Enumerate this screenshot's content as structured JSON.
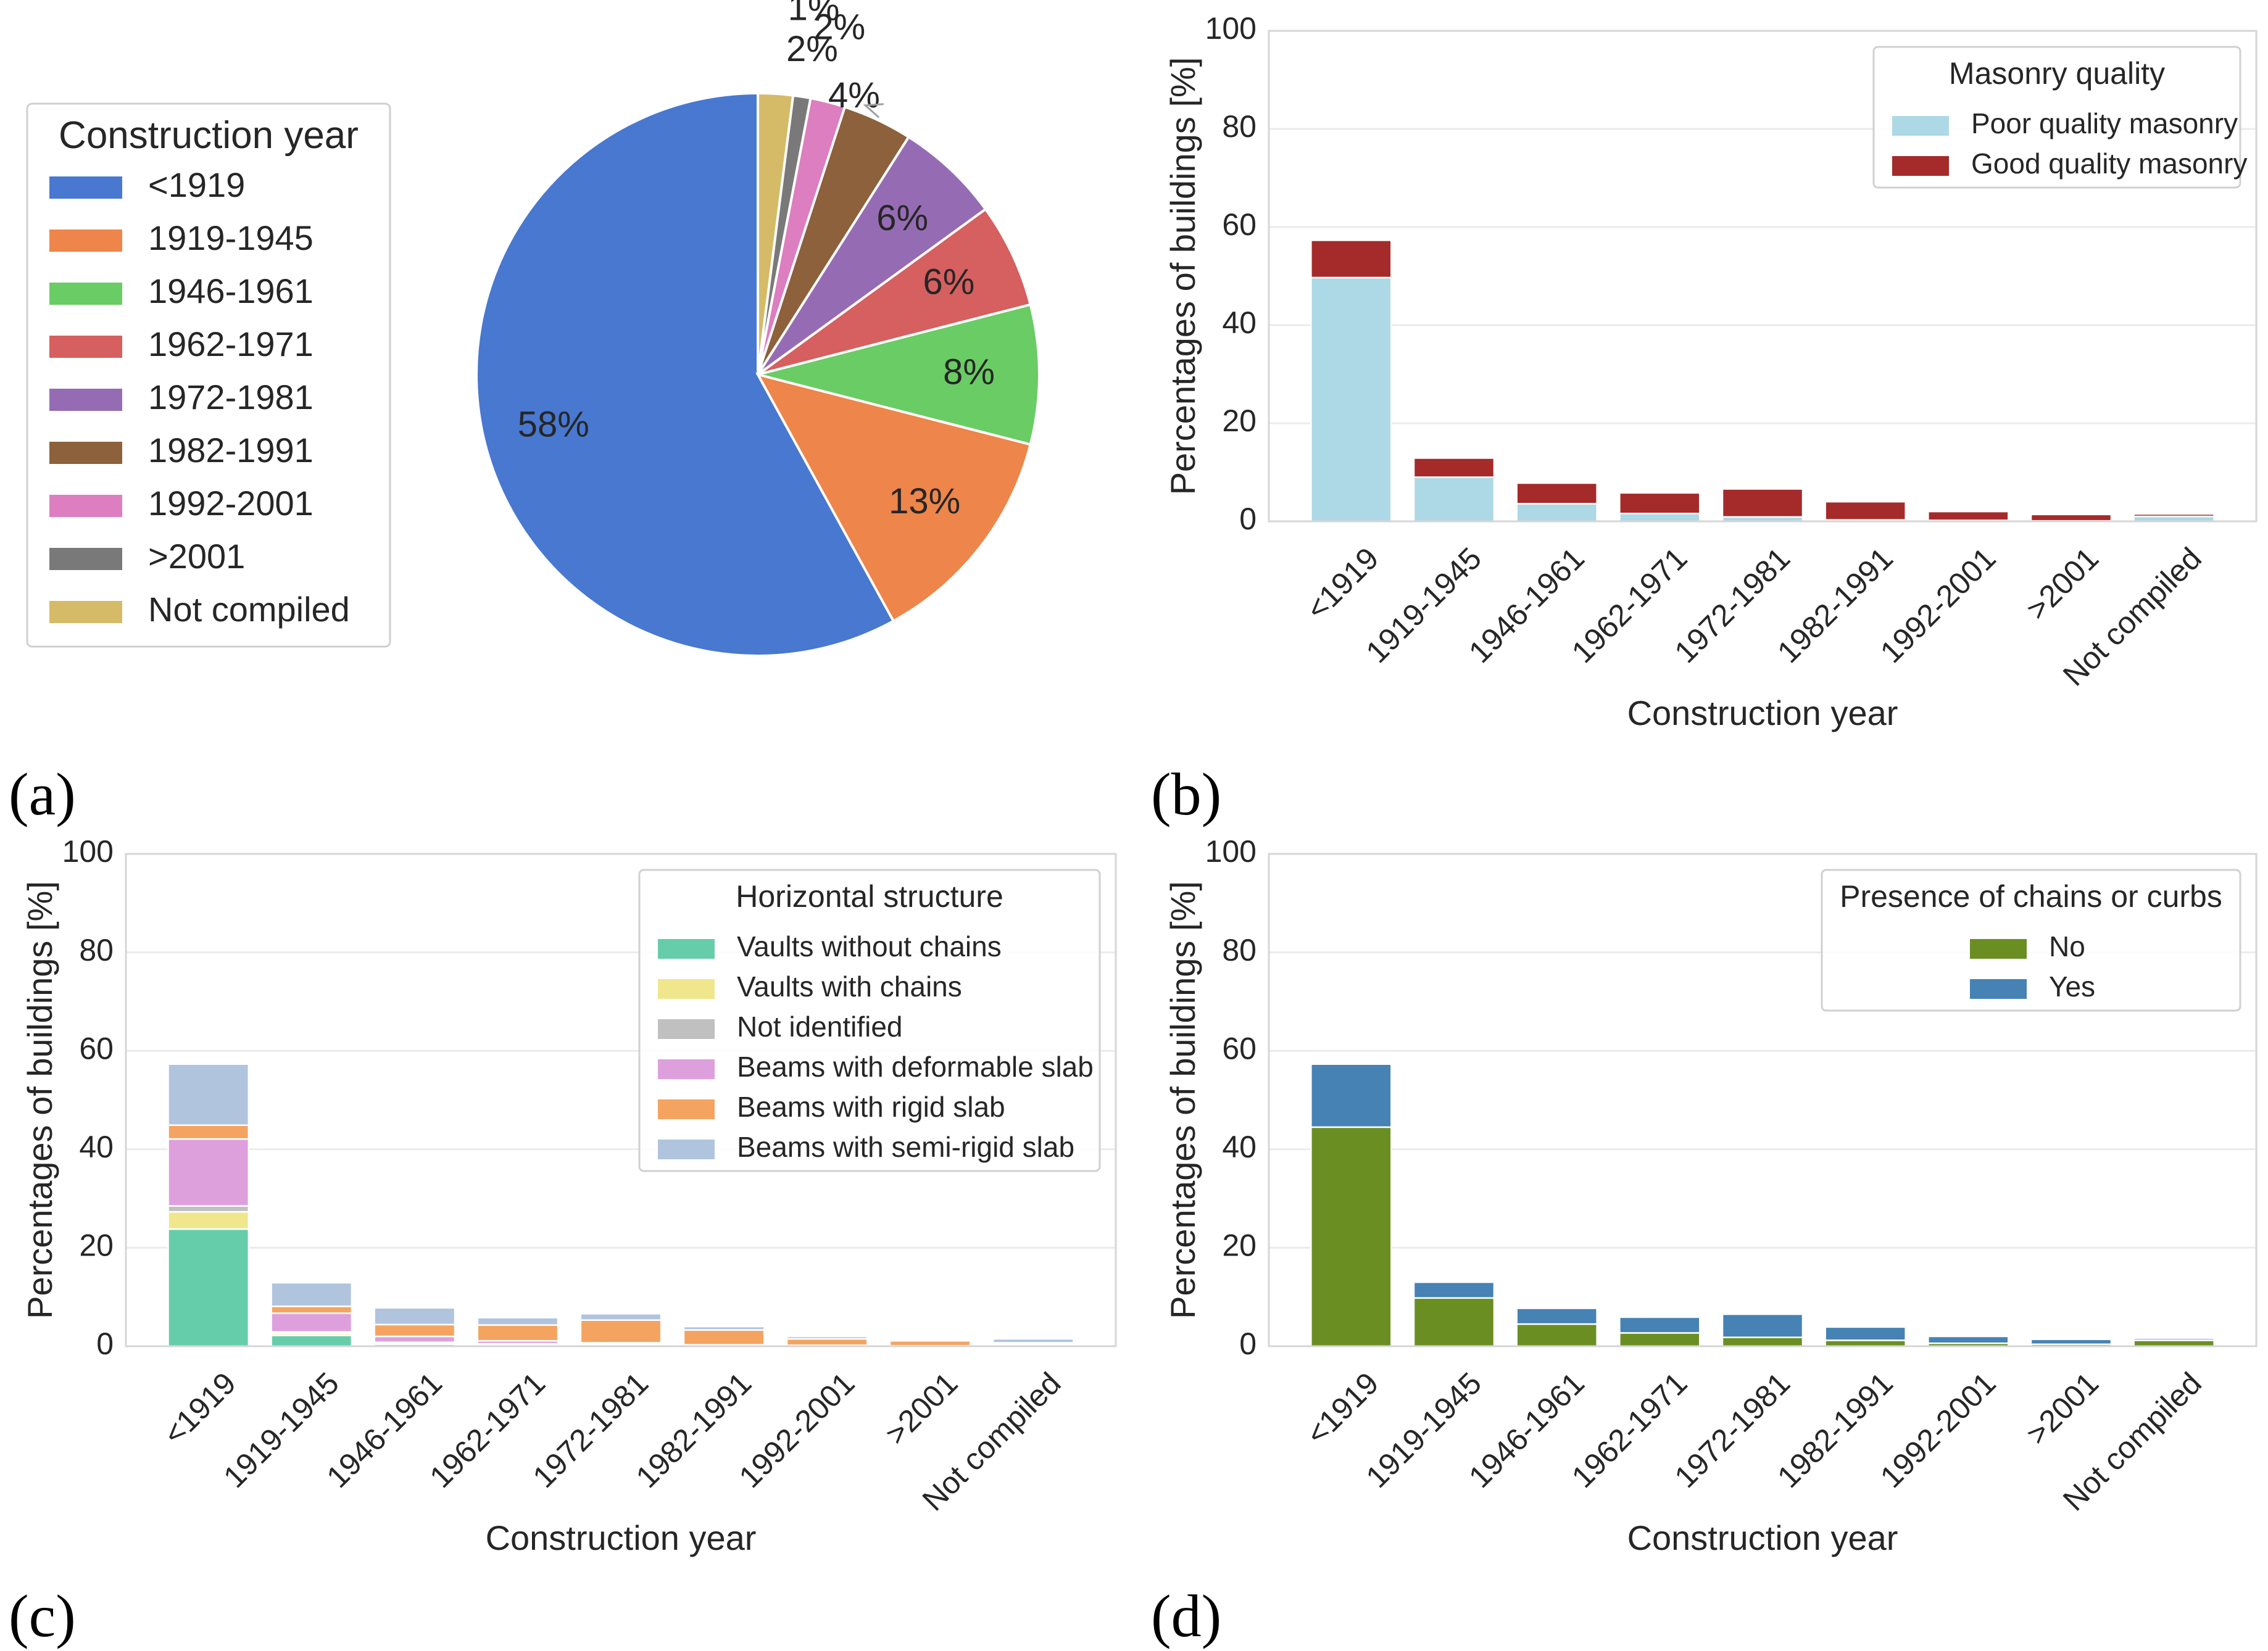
{
  "chart_data": [
    {
      "panel": "(a)",
      "type": "pie",
      "legend_title": "Construction year",
      "legend_position": "left",
      "categories": [
        "<1919",
        "1919-1945",
        "1946-1961",
        "1962-1971",
        "1972-1981",
        "1982-1991",
        "1992-2001",
        ">2001",
        "Not compiled"
      ],
      "values": [
        58,
        13,
        8,
        6,
        6,
        4,
        2,
        1,
        2
      ],
      "labels": [
        "58%",
        "13%",
        "8%",
        "6%",
        "6%",
        "4%",
        "2%",
        "1%",
        "2%"
      ],
      "colors": [
        "#4878d0",
        "#ee854a",
        "#6acc64",
        "#d65f5f",
        "#956cb4",
        "#8c613c",
        "#dc7ec0",
        "#797979",
        "#d5bb67"
      ]
    },
    {
      "panel": "(b)",
      "type": "bar",
      "stacked": true,
      "xlabel": "Construction year",
      "ylabel": "Percentages of buildings [%]",
      "ylim": [
        0,
        100
      ],
      "yticks": [
        "0",
        "20",
        "40",
        "60",
        "80",
        "100"
      ],
      "categories": [
        "<1919",
        "1919-1945",
        "1946-1961",
        "1962-1971",
        "1972-1981",
        "1982-1991",
        "1992-2001",
        ">2001",
        "Not compiled"
      ],
      "legend_title": "Masonry quality",
      "legend_position": "top-right",
      "series": [
        {
          "name": "Poor quality masonry",
          "color": "#add8e6",
          "values": [
            49.7,
            9.0,
            3.6,
            1.6,
            0.9,
            0.3,
            0.2,
            0.1,
            1.0
          ]
        },
        {
          "name": "Good quality masonry",
          "color": "#a52a2a",
          "values": [
            7.6,
            3.9,
            4.2,
            4.2,
            5.7,
            3.7,
            1.8,
            1.3,
            0.5
          ]
        }
      ]
    },
    {
      "panel": "(c)",
      "type": "bar",
      "stacked": true,
      "xlabel": "Construction year",
      "ylabel": "Percentages of buildings [%]",
      "ylim": [
        0,
        100
      ],
      "yticks": [
        "0",
        "20",
        "40",
        "60",
        "80",
        "100"
      ],
      "categories": [
        "<1919",
        "1919-1945",
        "1946-1961",
        "1962-1971",
        "1972-1981",
        "1982-1991",
        "1992-2001",
        ">2001",
        "Not compiled"
      ],
      "legend_title": "Horizontal structure",
      "legend_position": "top-right",
      "series": [
        {
          "name": "Vaults without chains",
          "color": "#66cdaa",
          "values": [
            23.8,
            2.2,
            0.4,
            0.2,
            0.1,
            0.1,
            0.0,
            0.0,
            0.2
          ]
        },
        {
          "name": "Vaults with chains",
          "color": "#f0e68c",
          "values": [
            3.5,
            0.4,
            0.2,
            0.1,
            0.1,
            0.0,
            0.0,
            0.0,
            0.1
          ]
        },
        {
          "name": "Not identified",
          "color": "#c0c0c0",
          "values": [
            1.2,
            0.3,
            0.2,
            0.2,
            0.2,
            0.1,
            0.1,
            0.1,
            0.1
          ]
        },
        {
          "name": "Beams with deformable slab",
          "color": "#dda0dd",
          "values": [
            13.6,
            3.8,
            1.2,
            0.6,
            0.3,
            0.1,
            0.1,
            0.0,
            0.1
          ]
        },
        {
          "name": "Beams with rigid slab",
          "color": "#f4a460",
          "values": [
            2.8,
            1.4,
            2.4,
            3.2,
            4.6,
            3.0,
            1.3,
            1.0,
            0.2
          ]
        },
        {
          "name": "Beams with semi-rigid slab",
          "color": "#b0c4de",
          "values": [
            12.4,
            4.8,
            3.4,
            1.5,
            1.3,
            0.7,
            0.5,
            0.3,
            0.8
          ]
        }
      ]
    },
    {
      "panel": "(d)",
      "type": "bar",
      "stacked": true,
      "xlabel": "Construction year",
      "ylabel": "Percentages of buildings [%]",
      "ylim": [
        0,
        100
      ],
      "yticks": [
        "0",
        "20",
        "40",
        "60",
        "80",
        "100"
      ],
      "categories": [
        "<1919",
        "1919-1945",
        "1946-1961",
        "1962-1971",
        "1972-1981",
        "1982-1991",
        "1992-2001",
        ">2001",
        "Not compiled"
      ],
      "legend_title": "Presence of chains or curbs",
      "legend_position": "top-right",
      "series": [
        {
          "name": "No",
          "color": "#6b8e23",
          "values": [
            44.5,
            9.8,
            4.5,
            2.7,
            1.8,
            1.2,
            0.6,
            0.4,
            1.2
          ]
        },
        {
          "name": "Yes",
          "color": "#4682b4",
          "values": [
            12.8,
            3.2,
            3.2,
            3.2,
            4.7,
            2.7,
            1.4,
            1.0,
            0.4
          ]
        }
      ]
    }
  ]
}
